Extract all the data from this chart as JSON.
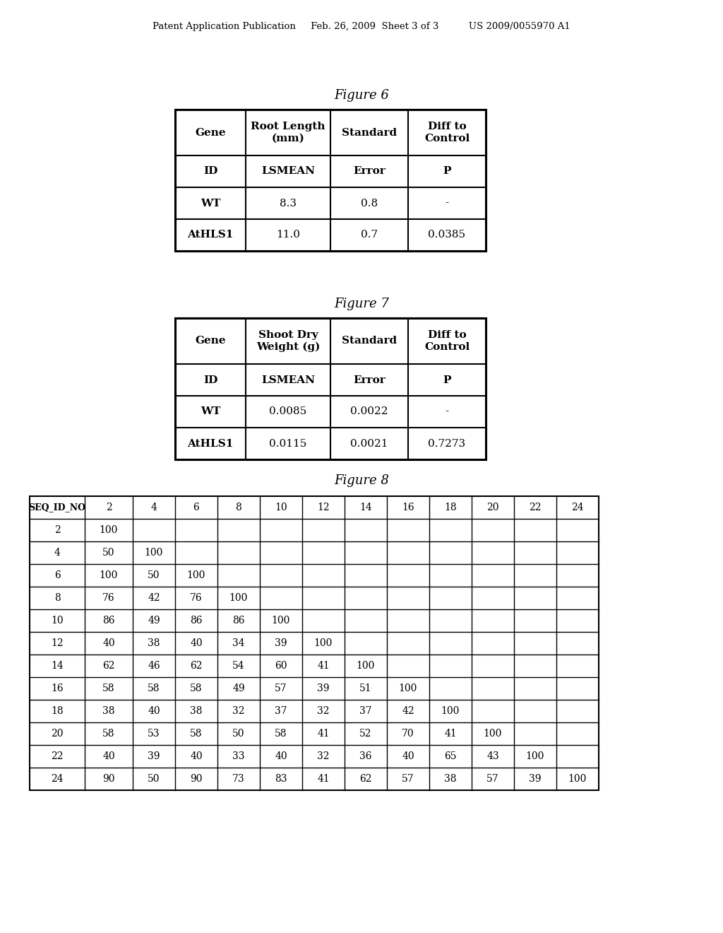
{
  "header_text": "Patent Application Publication     Feb. 26, 2009  Sheet 3 of 3          US 2009/0055970 A1",
  "fig6_title": "Figure 6",
  "fig7_title": "Figure 7",
  "fig8_title": "Figure 8",
  "fig6_headers": [
    "Gene",
    "Root Length\n(mm)",
    "Standard",
    "Diff to\nControl"
  ],
  "fig6_subheaders": [
    "ID",
    "LSMEAN",
    "Error",
    "P"
  ],
  "fig6_data": [
    [
      "WT",
      "8.3",
      "0.8",
      "-"
    ],
    [
      "AtHLS1",
      "11.0",
      "0.7",
      "0.0385"
    ]
  ],
  "fig7_headers": [
    "Gene",
    "Shoot Dry\nWeight (g)",
    "Standard",
    "Diff to\nControl"
  ],
  "fig7_subheaders": [
    "ID",
    "LSMEAN",
    "Error",
    "P"
  ],
  "fig7_data": [
    [
      "WT",
      "0.0085",
      "0.0022",
      "-"
    ],
    [
      "AtHLS1",
      "0.0115",
      "0.0021",
      "0.7273"
    ]
  ],
  "fig8_col_headers": [
    "SEQ_ID_NO",
    "2",
    "4",
    "6",
    "8",
    "10",
    "12",
    "14",
    "16",
    "18",
    "20",
    "22",
    "24"
  ],
  "fig8_data": [
    [
      "2",
      "100",
      "",
      "",
      "",
      "",
      "",
      "",
      "",
      "",
      "",
      "",
      ""
    ],
    [
      "4",
      "50",
      "100",
      "",
      "",
      "",
      "",
      "",
      "",
      "",
      "",
      "",
      ""
    ],
    [
      "6",
      "100",
      "50",
      "100",
      "",
      "",
      "",
      "",
      "",
      "",
      "",
      "",
      ""
    ],
    [
      "8",
      "76",
      "42",
      "76",
      "100",
      "",
      "",
      "",
      "",
      "",
      "",
      "",
      ""
    ],
    [
      "10",
      "86",
      "49",
      "86",
      "86",
      "100",
      "",
      "",
      "",
      "",
      "",
      "",
      ""
    ],
    [
      "12",
      "40",
      "38",
      "40",
      "34",
      "39",
      "100",
      "",
      "",
      "",
      "",
      "",
      ""
    ],
    [
      "14",
      "62",
      "46",
      "62",
      "54",
      "60",
      "41",
      "100",
      "",
      "",
      "",
      "",
      ""
    ],
    [
      "16",
      "58",
      "58",
      "58",
      "49",
      "57",
      "39",
      "51",
      "100",
      "",
      "",
      "",
      ""
    ],
    [
      "18",
      "38",
      "40",
      "38",
      "32",
      "37",
      "32",
      "37",
      "42",
      "100",
      "",
      "",
      ""
    ],
    [
      "20",
      "58",
      "53",
      "58",
      "50",
      "58",
      "41",
      "52",
      "70",
      "41",
      "100",
      "",
      ""
    ],
    [
      "22",
      "40",
      "39",
      "40",
      "33",
      "40",
      "32",
      "36",
      "40",
      "65",
      "43",
      "100",
      ""
    ],
    [
      "24",
      "90",
      "50",
      "90",
      "73",
      "83",
      "41",
      "62",
      "57",
      "38",
      "57",
      "39",
      "100"
    ]
  ],
  "background_color": "#ffffff",
  "text_color": "#000000",
  "border_color": "#000000"
}
